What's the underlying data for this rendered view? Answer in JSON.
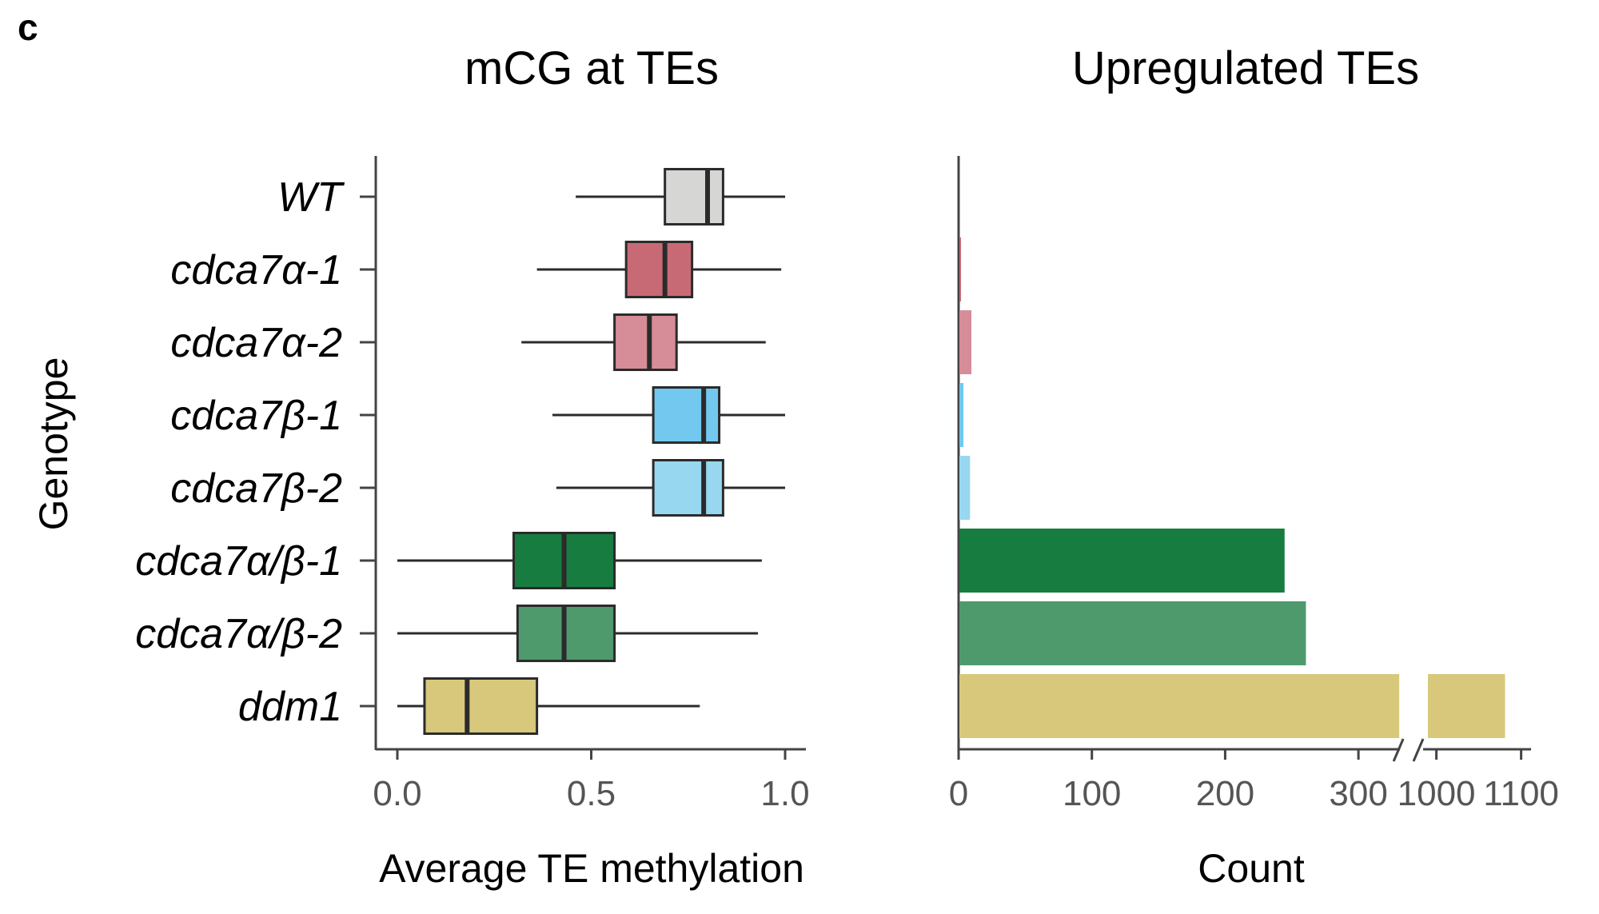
{
  "panel_label": "c",
  "chart_data": [
    {
      "type": "box",
      "title": "mCG at TEs",
      "xlabel": "Average TE methylation",
      "ylabel": "Genotype",
      "xlim": [
        -0.05,
        1.05
      ],
      "xticks": [
        0.0,
        0.5,
        1.0
      ],
      "xtick_labels": [
        "0.0",
        "0.5",
        "1.0"
      ],
      "categories": [
        "WT",
        "cdca7α-1",
        "cdca7α-2",
        "cdca7β-1",
        "cdca7β-2",
        "cdca7α/β-1",
        "cdca7α/β-2",
        "ddm1"
      ],
      "colors": [
        "#d6d6d4",
        "#c86a76",
        "#d68d98",
        "#72c8ee",
        "#98d7f0",
        "#177c40",
        "#4f9a6d",
        "#d7c87c"
      ],
      "boxes": [
        {
          "min": 0.46,
          "q1": 0.69,
          "median": 0.8,
          "q3": 0.84,
          "max": 1.0
        },
        {
          "min": 0.36,
          "q1": 0.59,
          "median": 0.69,
          "q3": 0.76,
          "max": 0.99
        },
        {
          "min": 0.32,
          "q1": 0.56,
          "median": 0.65,
          "q3": 0.72,
          "max": 0.95
        },
        {
          "min": 0.4,
          "q1": 0.66,
          "median": 0.79,
          "q3": 0.83,
          "max": 1.0
        },
        {
          "min": 0.41,
          "q1": 0.66,
          "median": 0.79,
          "q3": 0.84,
          "max": 1.0
        },
        {
          "min": 0.0,
          "q1": 0.3,
          "median": 0.43,
          "q3": 0.56,
          "max": 0.94
        },
        {
          "min": 0.0,
          "q1": 0.31,
          "median": 0.43,
          "q3": 0.56,
          "max": 0.93
        },
        {
          "min": 0.0,
          "q1": 0.07,
          "median": 0.18,
          "q3": 0.36,
          "max": 0.78
        }
      ]
    },
    {
      "type": "bar",
      "orientation": "horizontal",
      "title": "Upregulated TEs",
      "xlabel": "Count",
      "axis_break": [
        330,
        990
      ],
      "xticks": [
        0,
        100,
        200,
        300,
        1000,
        1100
      ],
      "xtick_labels": [
        "0",
        "100",
        "200",
        "300",
        "1000",
        "1100"
      ],
      "categories": [
        "WT",
        "cdca7α-1",
        "cdca7α-2",
        "cdca7β-1",
        "cdca7β-2",
        "cdca7α/β-1",
        "cdca7α/β-2",
        "ddm1"
      ],
      "values": [
        0,
        1,
        9,
        3,
        8,
        244,
        260,
        1081
      ],
      "colors": [
        "#d6d6d4",
        "#c86a76",
        "#d68d98",
        "#72c8ee",
        "#98d7f0",
        "#177c40",
        "#4f9a6d",
        "#d7c87c"
      ]
    }
  ]
}
